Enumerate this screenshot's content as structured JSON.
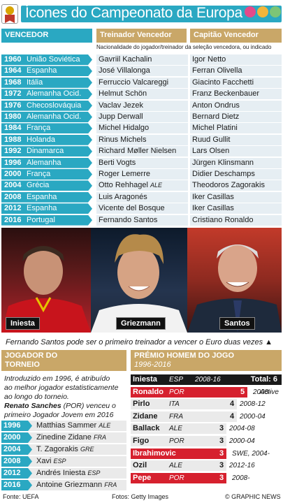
{
  "title": "Ícones do Campeonato da Europa",
  "headers": {
    "winner": "VENCEDOR",
    "coach": "Treinador Vencedor",
    "captain": "Capitão Vencedor"
  },
  "note": "Nacionalidade do jogador/treinador da seleção vencedora, ou indicado",
  "winners": [
    {
      "year": "1960",
      "team": "União Soviética",
      "coach": "Gavriil Kachalin",
      "coach_nat": "",
      "captain": "Igor Netto"
    },
    {
      "year": "1964",
      "team": "Espanha",
      "coach": "José Villalonga",
      "coach_nat": "",
      "captain": "Ferran Olivella"
    },
    {
      "year": "1968",
      "team": "Itália",
      "coach": "Ferruccio Valcareggi",
      "coach_nat": "",
      "captain": "Giacinto Facchetti"
    },
    {
      "year": "1972",
      "team": "Alemanha Ocid.",
      "coach": "Helmut Schön",
      "coach_nat": "",
      "captain": "Franz Beckenbauer"
    },
    {
      "year": "1976",
      "team": "Checoslováquia",
      "coach": "Vaclav Jezek",
      "coach_nat": "",
      "captain": "Anton Ondrus"
    },
    {
      "year": "1980",
      "team": "Alemanha Ocid.",
      "coach": "Jupp Derwall",
      "coach_nat": "",
      "captain": "Bernard Dietz"
    },
    {
      "year": "1984",
      "team": "França",
      "coach": "Michel Hidalgo",
      "coach_nat": "",
      "captain": "Michel Platini"
    },
    {
      "year": "1988",
      "team": "Holanda",
      "coach": "Rinus Michels",
      "coach_nat": "",
      "captain": "Ruud Gullit"
    },
    {
      "year": "1992",
      "team": "Dinamarca",
      "coach": "Richard Møller Nielsen",
      "coach_nat": "",
      "captain": "Lars Olsen"
    },
    {
      "year": "1996",
      "team": "Alemanha",
      "coach": "Berti Vogts",
      "coach_nat": "",
      "captain": "Jürgen Klinsmann"
    },
    {
      "year": "2000",
      "team": "França",
      "coach": "Roger Lemerre",
      "coach_nat": "",
      "captain": "Didier Deschamps"
    },
    {
      "year": "2004",
      "team": "Grécia",
      "coach": "Otto Rehhagel",
      "coach_nat": "ALE",
      "captain": "Theodoros Zagorakis"
    },
    {
      "year": "2008",
      "team": "Espanha",
      "coach": "Luis Aragonés",
      "coach_nat": "",
      "captain": "Iker Casillas"
    },
    {
      "year": "2012",
      "team": "Espanha",
      "coach": "Vicente del Bosque",
      "coach_nat": "",
      "captain": "Iker Casillas"
    },
    {
      "year": "2016",
      "team": "Portugal",
      "coach": "Fernando Santos",
      "coach_nat": "",
      "captain": "Cristiano Ronaldo"
    }
  ],
  "photos": [
    "Iniesta",
    "Griezmann",
    "Santos"
  ],
  "tagline": "Fernando Santos pode ser o primeiro treinador a vencer o Euro duas vezes ▲",
  "player_of_tournament": {
    "heading": "JOGADOR DO TORNEIO",
    "intro_lines": [
      "Introduzido em 1996, é atribuído",
      "ao melhor jogador estatisticamente",
      "ao longo do torneio."
    ],
    "sanches_name": "Renato Sanches",
    "sanches_rest": " (POR) venceu o",
    "sanches_line2": "primeiro Jogador Jovem em 2016",
    "rows": [
      {
        "year": "1996",
        "name": "Matthias Sammer",
        "nat": "ALE"
      },
      {
        "year": "2000",
        "name": "Zinedine Zidane",
        "nat": "FRA"
      },
      {
        "year": "2004",
        "name": "T. Zagorakis",
        "nat": "GRE"
      },
      {
        "year": "2008",
        "name": "Xavi",
        "nat": "ESP"
      },
      {
        "year": "2012",
        "name": "Andrés Iniesta",
        "nat": "ESP"
      },
      {
        "year": "2016",
        "name": "Antoine Griezmann",
        "nat": "FRA"
      }
    ]
  },
  "man_of_match": {
    "heading": "Prémio Homem do Jogo",
    "period": "1996-2016",
    "rows": [
      {
        "name": "Iniesta",
        "nat": "ESP",
        "years": "2008-16",
        "total": "6",
        "total_label": "Total: 6",
        "active": ""
      },
      {
        "name": "Ronaldo",
        "nat": "POR",
        "years": "2008-",
        "total": "5",
        "total_label": "",
        "active": "Active"
      },
      {
        "name": "Pirlo",
        "nat": "ITA",
        "years": "2008-12",
        "total": "4",
        "total_label": "",
        "active": ""
      },
      {
        "name": "Zidane",
        "nat": "FRA",
        "years": "2000-04",
        "total": "4",
        "total_label": "",
        "active": ""
      },
      {
        "name": "Ballack",
        "nat": "ALE",
        "years": "2004-08",
        "total": "3",
        "total_label": "",
        "active": ""
      },
      {
        "name": "Figo",
        "nat": "POR",
        "years": "2000-04",
        "total": "3",
        "total_label": "",
        "active": ""
      },
      {
        "name": "Ibrahimovic",
        "nat": "",
        "years": "SWE, 2004-",
        "total": "3",
        "total_label": "",
        "active": ""
      },
      {
        "name": "Ozil",
        "nat": "ALE",
        "years": "2012-16",
        "total": "3",
        "total_label": "",
        "active": ""
      },
      {
        "name": "Pepe",
        "nat": "POR",
        "years": "2008-",
        "total": "3",
        "total_label": "",
        "active": ""
      }
    ]
  },
  "footer": {
    "source": "Fonte: UEFA",
    "photos": "Fotos: Getty Images",
    "credit": "© GRAPHIC NEWS"
  },
  "colors": {
    "accent": "#2aa8c2",
    "gold": "#c9a768",
    "red": "#d6202e",
    "row_bg": "#e6eef3"
  }
}
